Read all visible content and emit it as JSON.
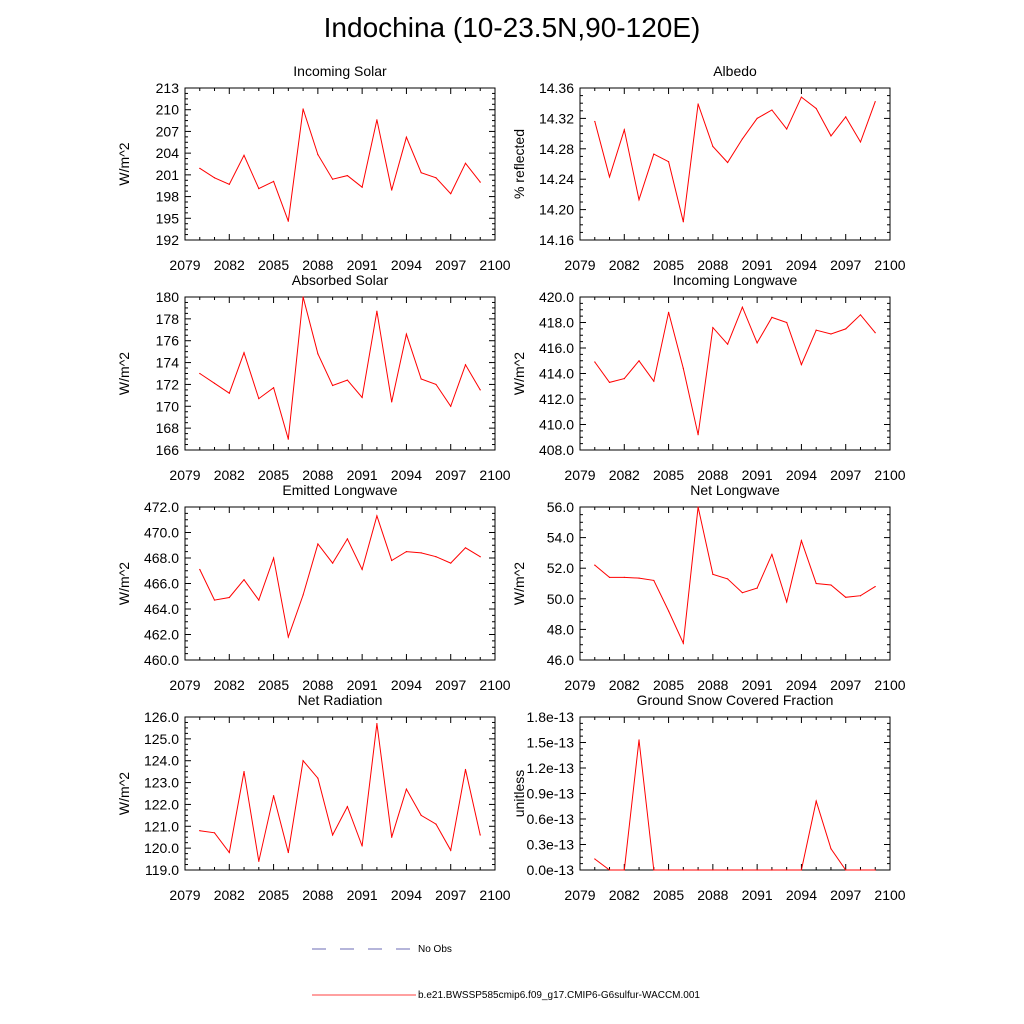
{
  "page": {
    "title": "Indochina (10-23.5N,90-120E)"
  },
  "legend": {
    "no_obs_label": "No Obs",
    "model_label": "b.e21.BWSSP585cmip6.f09_g17.CMIP6-G6sulfur-WACCM.001",
    "no_obs_color": "#3b3b9c",
    "model_color": "#ff0000"
  },
  "chart_data": [
    {
      "type": "line",
      "title": "Incoming Solar",
      "ylabel": "W/m^2",
      "xlim": [
        2079,
        2100
      ],
      "xticks": [
        "2079",
        "2082",
        "2085",
        "2088",
        "2091",
        "2094",
        "2097",
        "2100"
      ],
      "ylim": [
        192,
        213
      ],
      "yticks": [
        "192",
        "195",
        "198",
        "201",
        "204",
        "207",
        "210",
        "213"
      ],
      "series": [
        {
          "color": "#ff0000",
          "x": [
            2080,
            2081,
            2082,
            2083,
            2084,
            2085,
            2086,
            2087,
            2088,
            2089,
            2090,
            2091,
            2092,
            2093,
            2094,
            2095,
            2096,
            2097,
            2098,
            2099
          ],
          "values": [
            201.9,
            200.6,
            199.7,
            203.7,
            199.1,
            200.1,
            194.6,
            210.1,
            203.8,
            200.4,
            200.9,
            199.3,
            208.6,
            198.9,
            206.2,
            201.3,
            200.6,
            198.4,
            202.6,
            200.0
          ]
        }
      ]
    },
    {
      "type": "line",
      "title": "Albedo",
      "ylabel": "% reflected",
      "xlim": [
        2079,
        2100
      ],
      "xticks": [
        "2079",
        "2082",
        "2085",
        "2088",
        "2091",
        "2094",
        "2097",
        "2100"
      ],
      "ylim": [
        14.16,
        14.36
      ],
      "yticks": [
        "14.16",
        "14.20",
        "14.24",
        "14.28",
        "14.32",
        "14.36"
      ],
      "series": [
        {
          "color": "#ff0000",
          "x": [
            2080,
            2081,
            2082,
            2083,
            2084,
            2085,
            2086,
            2087,
            2088,
            2089,
            2090,
            2091,
            2092,
            2093,
            2094,
            2095,
            2096,
            2097,
            2098,
            2099
          ],
          "values": [
            14.316,
            14.243,
            14.305,
            14.213,
            14.273,
            14.263,
            14.184,
            14.339,
            14.283,
            14.262,
            14.293,
            14.32,
            14.331,
            14.306,
            14.348,
            14.333,
            14.297,
            14.322,
            14.289,
            14.342
          ]
        }
      ]
    },
    {
      "type": "line",
      "title": "Absorbed Solar",
      "ylabel": "W/m^2",
      "xlim": [
        2079,
        2100
      ],
      "xticks": [
        "2079",
        "2082",
        "2085",
        "2088",
        "2091",
        "2094",
        "2097",
        "2100"
      ],
      "ylim": [
        166,
        180
      ],
      "yticks": [
        "166",
        "168",
        "170",
        "172",
        "174",
        "176",
        "178",
        "180"
      ],
      "series": [
        {
          "color": "#ff0000",
          "x": [
            2080,
            2081,
            2082,
            2083,
            2084,
            2085,
            2086,
            2087,
            2088,
            2089,
            2090,
            2091,
            2092,
            2093,
            2094,
            2095,
            2096,
            2097,
            2098,
            2099
          ],
          "values": [
            173.0,
            172.1,
            171.2,
            174.9,
            170.7,
            171.7,
            167.0,
            180.0,
            174.8,
            171.9,
            172.4,
            170.8,
            178.7,
            170.4,
            176.6,
            172.5,
            172.0,
            170.0,
            173.8,
            171.5
          ]
        }
      ]
    },
    {
      "type": "line",
      "title": "Incoming Longwave",
      "ylabel": "W/m^2",
      "xlim": [
        2079,
        2100
      ],
      "xticks": [
        "2079",
        "2082",
        "2085",
        "2088",
        "2091",
        "2094",
        "2097",
        "2100"
      ],
      "ylim": [
        408.0,
        420.0
      ],
      "yticks": [
        "408.0",
        "410.0",
        "412.0",
        "414.0",
        "416.0",
        "418.0",
        "420.0"
      ],
      "series": [
        {
          "color": "#ff0000",
          "x": [
            2080,
            2081,
            2082,
            2083,
            2084,
            2085,
            2086,
            2087,
            2088,
            2089,
            2090,
            2091,
            2092,
            2093,
            2094,
            2095,
            2096,
            2097,
            2098,
            2099
          ],
          "values": [
            414.9,
            413.3,
            413.6,
            415.0,
            413.4,
            418.8,
            414.4,
            409.2,
            417.6,
            416.3,
            419.2,
            416.4,
            418.4,
            418.0,
            414.7,
            417.4,
            417.1,
            417.5,
            418.6,
            417.2
          ]
        }
      ]
    },
    {
      "type": "line",
      "title": "Emitted Longwave",
      "ylabel": "W/m^2",
      "xlim": [
        2079,
        2100
      ],
      "xticks": [
        "2079",
        "2082",
        "2085",
        "2088",
        "2091",
        "2094",
        "2097",
        "2100"
      ],
      "ylim": [
        460.0,
        472.0
      ],
      "yticks": [
        "460.0",
        "462.0",
        "464.0",
        "466.0",
        "468.0",
        "470.0",
        "472.0"
      ],
      "series": [
        {
          "color": "#ff0000",
          "x": [
            2080,
            2081,
            2082,
            2083,
            2084,
            2085,
            2086,
            2087,
            2088,
            2089,
            2090,
            2091,
            2092,
            2093,
            2094,
            2095,
            2096,
            2097,
            2098,
            2099
          ],
          "values": [
            467.1,
            464.7,
            464.9,
            466.3,
            464.7,
            468.0,
            461.8,
            465.1,
            469.1,
            467.6,
            469.5,
            467.1,
            471.3,
            467.8,
            468.5,
            468.4,
            468.1,
            467.6,
            468.8,
            468.1
          ]
        }
      ]
    },
    {
      "type": "line",
      "title": "Net Longwave",
      "ylabel": "W/m^2",
      "xlim": [
        2079,
        2100
      ],
      "xticks": [
        "2079",
        "2082",
        "2085",
        "2088",
        "2091",
        "2094",
        "2097",
        "2100"
      ],
      "ylim": [
        46.0,
        56.0
      ],
      "yticks": [
        "46.0",
        "48.0",
        "50.0",
        "52.0",
        "54.0",
        "56.0"
      ],
      "series": [
        {
          "color": "#ff0000",
          "x": [
            2080,
            2081,
            2082,
            2083,
            2084,
            2085,
            2086,
            2087,
            2088,
            2089,
            2090,
            2091,
            2092,
            2093,
            2094,
            2095,
            2096,
            2097,
            2098,
            2099
          ],
          "values": [
            52.2,
            51.4,
            51.4,
            51.35,
            51.2,
            49.2,
            47.1,
            56.0,
            51.6,
            51.3,
            50.4,
            50.7,
            52.9,
            49.8,
            53.8,
            51.0,
            50.9,
            50.1,
            50.2,
            50.8
          ]
        }
      ]
    },
    {
      "type": "line",
      "title": "Net Radiation",
      "ylabel": "W/m^2",
      "xlim": [
        2079,
        2100
      ],
      "xticks": [
        "2079",
        "2082",
        "2085",
        "2088",
        "2091",
        "2094",
        "2097",
        "2100"
      ],
      "ylim": [
        119.0,
        126.0
      ],
      "yticks": [
        "119.0",
        "120.0",
        "121.0",
        "122.0",
        "123.0",
        "124.0",
        "125.0",
        "126.0"
      ],
      "series": [
        {
          "color": "#ff0000",
          "x": [
            2080,
            2081,
            2082,
            2083,
            2084,
            2085,
            2086,
            2087,
            2088,
            2089,
            2090,
            2091,
            2092,
            2093,
            2094,
            2095,
            2096,
            2097,
            2098,
            2099
          ],
          "values": [
            120.8,
            120.7,
            119.8,
            123.5,
            119.4,
            122.4,
            119.8,
            124.0,
            123.2,
            120.6,
            121.9,
            120.1,
            125.7,
            120.5,
            122.7,
            121.5,
            121.1,
            119.9,
            123.6,
            120.6
          ]
        }
      ]
    },
    {
      "type": "line",
      "title": "Ground Snow Covered Fraction",
      "ylabel": "unitless",
      "xlim": [
        2079,
        2100
      ],
      "xticks": [
        "2079",
        "2082",
        "2085",
        "2088",
        "2091",
        "2094",
        "2097",
        "2100"
      ],
      "ylim": [
        0.0,
        1.8
      ],
      "yticks": [
        "0.0e-13",
        "0.3e-13",
        "0.6e-13",
        "0.9e-13",
        "1.2e-13",
        "1.5e-13",
        "1.8e-13"
      ],
      "series": [
        {
          "color": "#ff0000",
          "x": [
            2080,
            2081,
            2082,
            2083,
            2084,
            2085,
            2086,
            2087,
            2088,
            2089,
            2090,
            2091,
            2092,
            2093,
            2094,
            2095,
            2096,
            2097,
            2098,
            2099
          ],
          "values": [
            0.13,
            0.0,
            0.0,
            1.53,
            0.0,
            0.0,
            0.0,
            0.0,
            0.0,
            0.0,
            0.0,
            0.0,
            0.0,
            0.0,
            0.0,
            0.81,
            0.25,
            0.0,
            0.0,
            0.0
          ]
        }
      ]
    }
  ]
}
